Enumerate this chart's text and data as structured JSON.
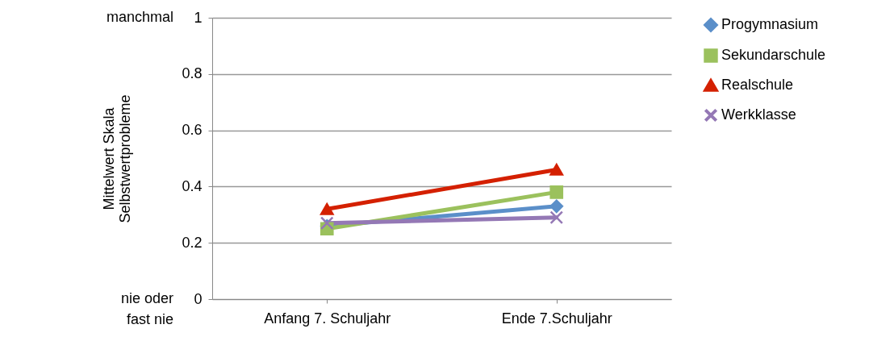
{
  "chart_data": {
    "type": "line",
    "ylabel": "Mittelwert Skala\nSelbstwertprobleme",
    "categories": [
      "Anfang 7. Schuljahr",
      "Ende 7.Schuljahr"
    ],
    "series": [
      {
        "name": "Progymnasium",
        "color": "#5b8fc9",
        "marker": "diamond",
        "values": [
          0.26,
          0.33
        ]
      },
      {
        "name": "Sekundarschule",
        "color": "#9bc15d",
        "marker": "square",
        "values": [
          0.25,
          0.38
        ]
      },
      {
        "name": "Realschule",
        "color": "#d42000",
        "marker": "triangle",
        "values": [
          0.32,
          0.46
        ]
      },
      {
        "name": "Werkklasse",
        "color": "#9478b5",
        "marker": "cross",
        "values": [
          0.27,
          0.29
        ]
      }
    ],
    "ylim": [
      0,
      1
    ],
    "yticks": [
      0,
      0.2,
      0.4,
      0.6,
      0.8,
      1
    ],
    "grid": "y",
    "legend": "right",
    "annotations": [
      "manchmal",
      "nie oder\nfast nie"
    ]
  }
}
